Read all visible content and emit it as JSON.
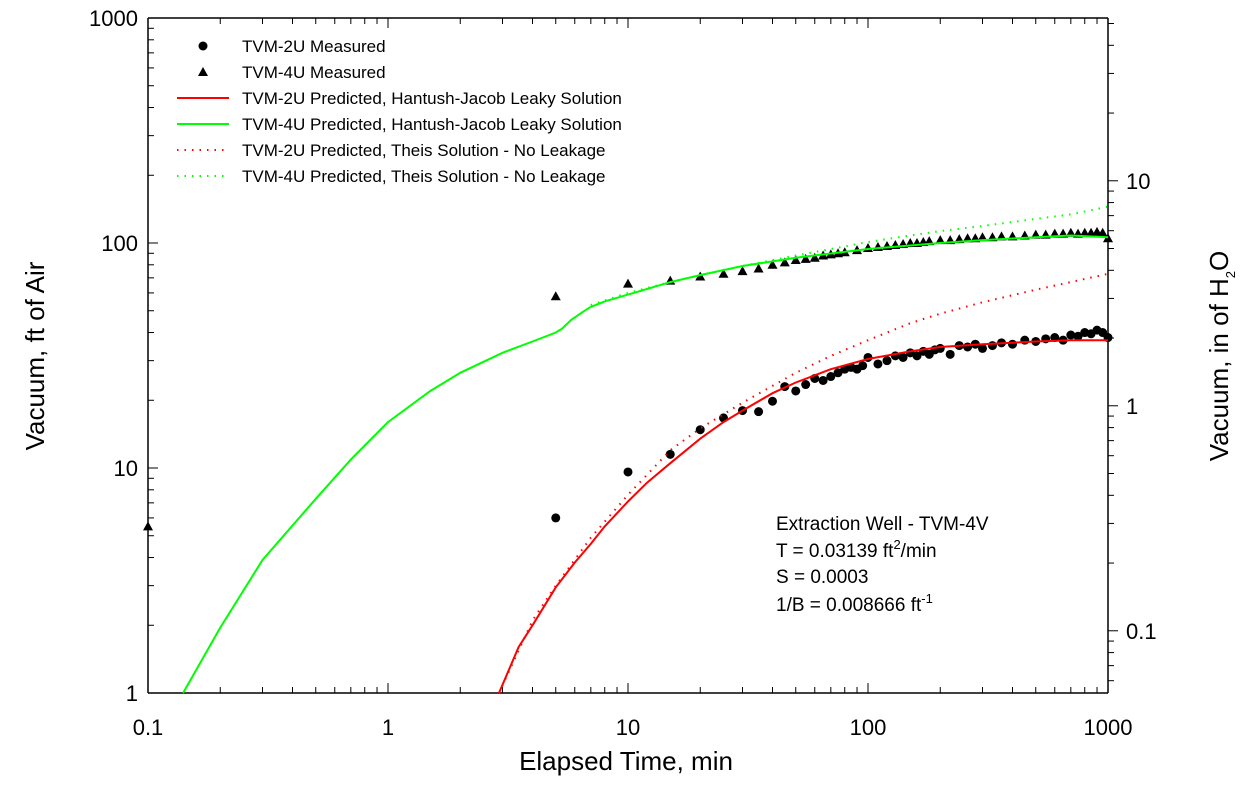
{
  "chart_data": {
    "type": "scatter",
    "title": "",
    "xlabel": "Elapsed Time, min",
    "ylabel": "Vacuum, ft of Air",
    "y2label_main": "Vacuum, in of H",
    "y2label_sub": "2",
    "y2label_tail": "O",
    "x_scale": "log",
    "y_scale": "log",
    "y2_scale": "log",
    "xlim": [
      0.1,
      1000
    ],
    "ylim": [
      1,
      1000
    ],
    "y2lim": [
      0.0529,
      52.9
    ],
    "grid": false,
    "legend_position": "top-left",
    "x_ticks": [
      "0.1",
      "1",
      "10",
      "100",
      "1000"
    ],
    "y_ticks": [
      "1",
      "10",
      "100",
      "1000"
    ],
    "y2_ticks": [
      "0.1",
      "1",
      "10"
    ],
    "colors": {
      "red": "#ff0000",
      "green": "#00ff00",
      "black": "#000000"
    },
    "series": [
      {
        "name": "TVM-2U Measured",
        "marker": "circle",
        "color": "#000000",
        "x": [
          5,
          10,
          15,
          20,
          25,
          30,
          35,
          40,
          45,
          50,
          55,
          60,
          65,
          70,
          75,
          80,
          85,
          90,
          95,
          100,
          110,
          120,
          130,
          140,
          150,
          160,
          170,
          180,
          190,
          200,
          220,
          240,
          260,
          280,
          300,
          330,
          360,
          400,
          450,
          500,
          550,
          600,
          650,
          700,
          750,
          800,
          850,
          900,
          950,
          1000
        ],
        "y": [
          6.0,
          9.6,
          11.5,
          14.8,
          16.7,
          18.0,
          17.8,
          19.8,
          23.0,
          22.0,
          23.5,
          25.0,
          24.5,
          25.5,
          26.5,
          27.5,
          28.0,
          27.5,
          28.5,
          31.0,
          29.0,
          30.0,
          31.5,
          31.0,
          32.5,
          31.5,
          33.0,
          32.0,
          33.5,
          34.0,
          32.0,
          35.0,
          34.5,
          35.5,
          34.0,
          35.0,
          36.0,
          35.5,
          37.0,
          36.5,
          37.5,
          38.0,
          37.0,
          39.0,
          38.5,
          40.0,
          39.5,
          41.0,
          40.0,
          38.0
        ]
      },
      {
        "name": "TVM-4U Measured",
        "marker": "triangle",
        "color": "#000000",
        "x": [
          0.1,
          5,
          10,
          15,
          20,
          25,
          30,
          35,
          40,
          45,
          50,
          55,
          60,
          65,
          70,
          75,
          80,
          90,
          100,
          110,
          120,
          130,
          140,
          150,
          160,
          170,
          180,
          200,
          220,
          240,
          260,
          280,
          300,
          330,
          360,
          400,
          450,
          500,
          550,
          600,
          650,
          700,
          750,
          800,
          850,
          900,
          950,
          1000
        ],
        "y": [
          5.5,
          58,
          66,
          68,
          71,
          73,
          75,
          77,
          80,
          82,
          84,
          85,
          86,
          88,
          89,
          90,
          91,
          93,
          95,
          96,
          97,
          98,
          99,
          100,
          100,
          101,
          102,
          103,
          103,
          104,
          105,
          105,
          106,
          106,
          107,
          107,
          108,
          109,
          109,
          110,
          110,
          111,
          110,
          111,
          111,
          112,
          111,
          105
        ]
      },
      {
        "name": "TVM-2U Predicted, Hantush-Jacob Leaky Solution",
        "style": "solid",
        "color": "#ff0000",
        "x": [
          2.9,
          3.5,
          4,
          5,
          6,
          7,
          8,
          10,
          12,
          15,
          20,
          25,
          30,
          40,
          50,
          70,
          100,
          150,
          200,
          300,
          500,
          700,
          1000
        ],
        "y": [
          1.0,
          1.6,
          2.0,
          2.95,
          3.8,
          4.6,
          5.5,
          7.1,
          8.6,
          10.5,
          13.5,
          16.0,
          18.0,
          21.5,
          24.0,
          27.5,
          30.5,
          33.0,
          34.5,
          35.5,
          36.5,
          37.0,
          37.0
        ]
      },
      {
        "name": "TVM-4U Predicted, Hantush-Jacob Leaky Solution",
        "style": "solid",
        "color": "#00ff00",
        "x": [
          0.14,
          0.2,
          0.3,
          0.5,
          0.7,
          1,
          1.5,
          2,
          3,
          4,
          5,
          5.3,
          5.8,
          6.5,
          7,
          8,
          10,
          15,
          20,
          30,
          50,
          100,
          200,
          300,
          500,
          700,
          1000
        ],
        "y": [
          1.0,
          1.95,
          3.9,
          7.3,
          10.9,
          16.0,
          22.0,
          26.5,
          32.5,
          36.5,
          40.0,
          41.5,
          45.5,
          49.5,
          52.0,
          55.0,
          59.0,
          67.0,
          72.0,
          79.0,
          86.0,
          94.0,
          100.0,
          103.0,
          106.0,
          108.0,
          106.0
        ]
      },
      {
        "name": "TVM-2U Predicted, Theis Solution - No Leakage",
        "style": "dotted",
        "color": "#ff0000",
        "x": [
          2.9,
          4,
          5,
          7,
          10,
          15,
          20,
          30,
          50,
          70,
          100,
          150,
          200,
          300,
          500,
          700,
          1000
        ],
        "y": [
          1.0,
          2.1,
          3.0,
          4.9,
          7.6,
          12.0,
          15.0,
          19.5,
          26.5,
          31.5,
          37.0,
          44.0,
          48.5,
          54.5,
          62.0,
          67.0,
          73.0
        ]
      },
      {
        "name": "TVM-4U Predicted, Theis Solution - No Leakage",
        "style": "dotted",
        "color": "#00ff00",
        "x": [
          7,
          10,
          15,
          20,
          30,
          50,
          70,
          100,
          150,
          200,
          300,
          500,
          700,
          1000
        ],
        "y": [
          53,
          60,
          67,
          72,
          79,
          88,
          94,
          101,
          108,
          113,
          119,
          128,
          134,
          145
        ]
      }
    ],
    "annotation": {
      "line1": "Extraction Well - TVM-4V",
      "line2_pre": "T = 0.03139 ft",
      "line2_sup": "2",
      "line2_post": "/min",
      "line3": "S = 0.0003",
      "line4_pre": "1/B = 0.008666 ft",
      "line4_sup": "-1"
    }
  }
}
